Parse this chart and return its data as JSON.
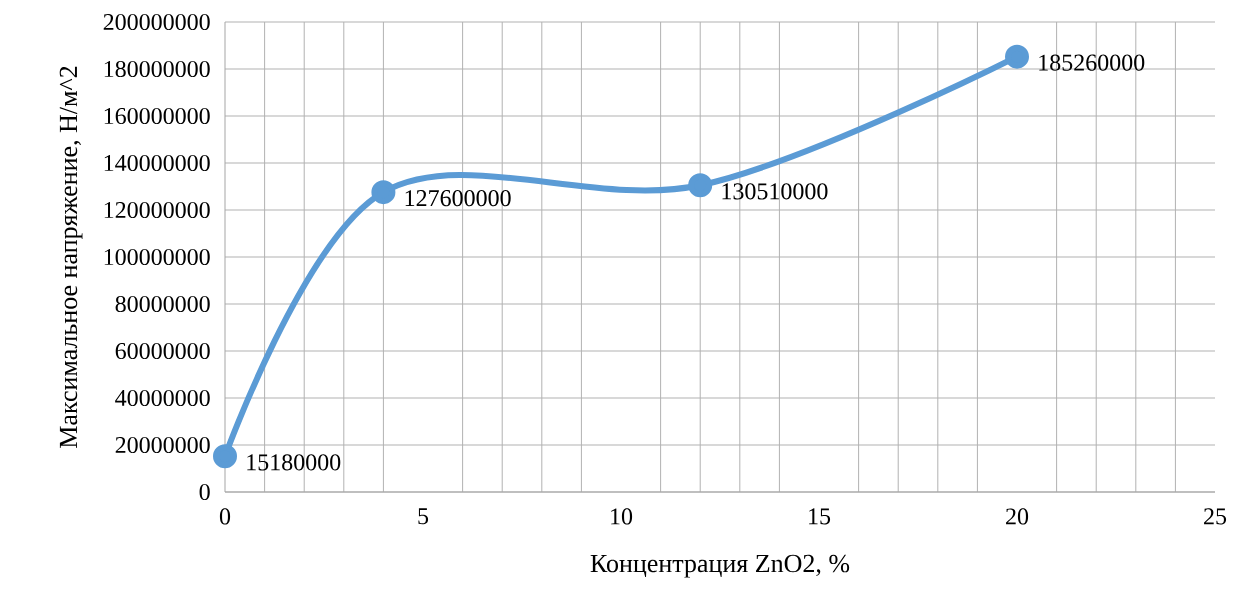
{
  "chart_data": {
    "type": "line",
    "xlabel": "Концентрация ZnO2, %",
    "ylabel": "Максимальное напряжение, Н/м^2",
    "x": [
      0,
      4,
      12,
      20
    ],
    "series": [
      {
        "color": "#5b9bd5",
        "values": [
          15180000,
          127600000,
          130510000,
          185260000
        ]
      }
    ],
    "value_labels": [
      "15180000",
      "127600000",
      "130510000",
      "185260000"
    ],
    "xlim": [
      0,
      25
    ],
    "xticks": [
      0,
      5,
      10,
      15,
      20,
      25
    ],
    "ylim": [
      0,
      200000000
    ],
    "yticks": [
      0,
      20000000,
      40000000,
      60000000,
      80000000,
      100000000,
      120000000,
      140000000,
      160000000,
      180000000,
      200000000
    ],
    "grid": true,
    "marker": "circle",
    "line_style": "solid"
  }
}
